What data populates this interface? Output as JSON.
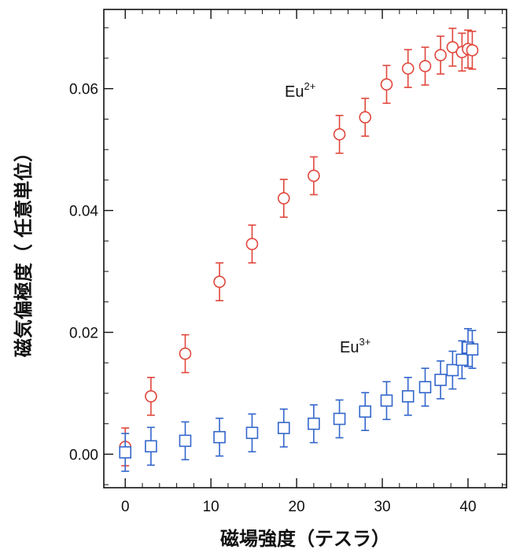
{
  "chart_data": {
    "type": "scatter",
    "xlabel": "磁場強度（テスラ）",
    "ylabel": "磁気偏極度（ 任意単位）",
    "xlim": [
      -2.5,
      44.5
    ],
    "ylim": [
      -0.0055,
      0.073
    ],
    "x_ticks": [
      0,
      10,
      20,
      30,
      40
    ],
    "x_tick_labels": [
      "0",
      "10",
      "20",
      "30",
      "40"
    ],
    "y_ticks": [
      0.0,
      0.02,
      0.04,
      0.06
    ],
    "y_tick_labels": [
      "0.00",
      "0.02",
      "0.04",
      "0.06"
    ],
    "grid": false,
    "series": [
      {
        "label_base": "Eu",
        "label_sup": "2+",
        "marker": "circle",
        "color": "#e0473c",
        "x": [
          0,
          3,
          7,
          11,
          14.8,
          18.5,
          22,
          25,
          28,
          30.5,
          33,
          35,
          36.8,
          38.2,
          39.3,
          40,
          40.5
        ],
        "y": [
          0.0012,
          0.0095,
          0.0165,
          0.0283,
          0.0345,
          0.042,
          0.0457,
          0.0525,
          0.0553,
          0.0607,
          0.0633,
          0.0637,
          0.0655,
          0.0668,
          0.066,
          0.0665,
          0.0663
        ],
        "err": [
          0.0031,
          0.0031,
          0.0031,
          0.0031,
          0.0031,
          0.0031,
          0.0031,
          0.0031,
          0.0031,
          0.0031,
          0.0031,
          0.0031,
          0.0031,
          0.0031,
          0.0031,
          0.0031,
          0.0031
        ]
      },
      {
        "label_base": "Eu",
        "label_sup": "3+",
        "marker": "square",
        "color": "#3366cc",
        "x": [
          0,
          3,
          7,
          11,
          14.8,
          18.5,
          22,
          25,
          28,
          30.5,
          33,
          35,
          36.8,
          38.2,
          39.3,
          40,
          40.5
        ],
        "y": [
          0.0003,
          0.0013,
          0.0022,
          0.0028,
          0.0035,
          0.0043,
          0.005,
          0.0058,
          0.007,
          0.0088,
          0.0095,
          0.011,
          0.0122,
          0.0138,
          0.0155,
          0.0175,
          0.0172
        ],
        "err": [
          0.0031,
          0.0031,
          0.0031,
          0.0031,
          0.0031,
          0.0031,
          0.0031,
          0.0031,
          0.0031,
          0.0031,
          0.0031,
          0.0031,
          0.0031,
          0.0031,
          0.0031,
          0.0031,
          0.0031
        ]
      }
    ]
  }
}
